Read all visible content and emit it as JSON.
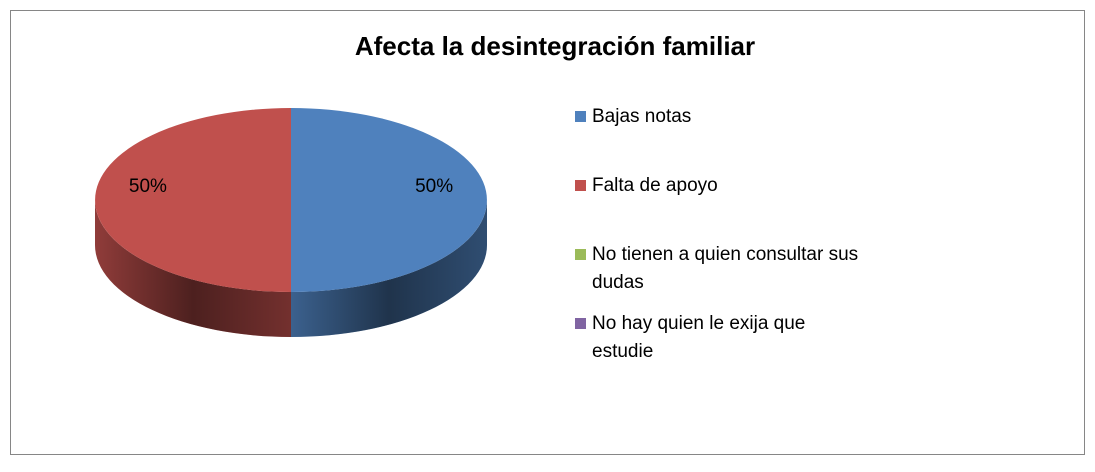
{
  "chart_data": {
    "type": "pie3d",
    "title": "Afecta la desintegración familiar",
    "categories": [
      "Bajas notas",
      "Falta de apoyo",
      "No tienen a quien consultar sus dudas",
      "No hay quien le exija que estudie"
    ],
    "values": [
      50,
      50,
      0,
      0
    ],
    "value_labels": [
      "50%",
      "50%",
      null,
      null
    ],
    "colors": [
      "#4f81bd",
      "#c0504d",
      "#9bbb59",
      "#8064a2"
    ],
    "legend": "right"
  }
}
